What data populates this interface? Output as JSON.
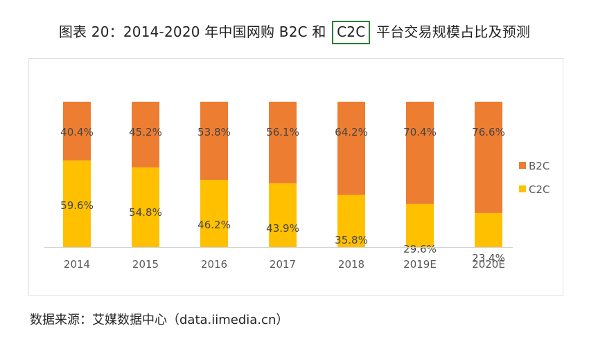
{
  "title": {
    "prefix": "图表 20：2014-2020 年中国网购 B2C 和",
    "highlight": "C2C",
    "suffix": "平台交易规模占比及预测"
  },
  "source": "数据来源：艾媒数据中心（data.iimedia.cn）",
  "colors": {
    "b2c": "#ED7D31",
    "c2c": "#FFC000",
    "axis": "#d0d0d0",
    "label": "#444444",
    "tick": "#595959"
  },
  "chart_data": {
    "type": "bar",
    "stacked": true,
    "title": "图表 20：2014-2020 年中国网购 B2C 和 C2C 平台交易规模占比及预测",
    "categories": [
      "2014",
      "2015",
      "2016",
      "2017",
      "2018",
      "2019E",
      "2020E"
    ],
    "series": [
      {
        "name": "C2C",
        "values": [
          59.6,
          54.8,
          46.2,
          43.9,
          35.8,
          29.6,
          23.4
        ],
        "labels": [
          "59.6%",
          "54.8%",
          "46.2%",
          "43.9%",
          "35.8%",
          "29.6%",
          "23.4%"
        ]
      },
      {
        "name": "B2C",
        "values": [
          40.4,
          45.2,
          53.8,
          56.1,
          64.2,
          70.4,
          76.6
        ],
        "labels": [
          "40.4%",
          "45.2%",
          "53.8%",
          "56.1%",
          "64.2%",
          "70.4%",
          "76.6%"
        ]
      }
    ],
    "legend": [
      "B2C",
      "C2C"
    ],
    "ylim": [
      0,
      100
    ],
    "unit": "%",
    "legend_position": "right"
  }
}
